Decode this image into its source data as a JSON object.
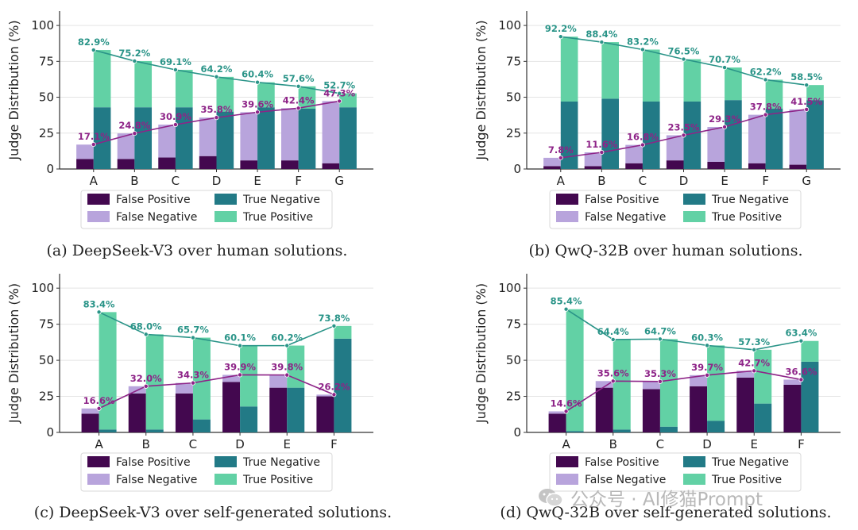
{
  "colors": {
    "false_positive": "#43084f",
    "false_negative": "#b8a4dc",
    "true_negative": "#227a86",
    "true_positive": "#62d1a5",
    "tp_line": "#2a9488",
    "fn_line": "#8e2488",
    "tp_label": "#2a9488",
    "fn_label": "#8e2488"
  },
  "legend": {
    "false_positive": "False Positive",
    "true_negative": "True Negative",
    "false_negative": "False Negative",
    "true_positive": "True Positive"
  },
  "watermark": {
    "text": "公众号 · AI修猫Prompt",
    "icon": "wechat-icon"
  },
  "chart_data": [
    {
      "type": "bar",
      "caption": "(a) DeepSeek-V3 over human solutions.",
      "ylabel": "Judge Distribution (%)",
      "ylim": [
        0,
        110
      ],
      "yticks": [
        0,
        25,
        50,
        75,
        100
      ],
      "categories": [
        "A",
        "B",
        "C",
        "D",
        "E",
        "F",
        "G"
      ],
      "series": [
        {
          "name": "False Positive",
          "values": [
            7,
            7,
            8,
            9,
            6,
            6,
            4
          ]
        },
        {
          "name": "False Negative",
          "values": [
            10,
            17.8,
            22.9,
            26.8,
            33.6,
            36.4,
            43.3
          ]
        },
        {
          "name": "True Negative",
          "values": [
            43,
            43,
            43,
            40,
            43,
            42,
            43
          ]
        },
        {
          "name": "True Positive",
          "values": [
            39.9,
            32.2,
            26.1,
            24.2,
            17.4,
            15.6,
            9.7
          ]
        }
      ],
      "line_true_positive": [
        82.9,
        75.2,
        69.1,
        64.2,
        60.4,
        57.6,
        52.7
      ],
      "line_false_negative": [
        17.1,
        24.8,
        30.9,
        35.8,
        39.6,
        42.4,
        47.3
      ],
      "labels_true_positive": [
        "82.9%",
        "75.2%",
        "69.1%",
        "64.2%",
        "60.4%",
        "57.6%",
        "52.7%"
      ],
      "labels_false_negative": [
        "17.1%",
        "24.8%",
        "30.9%",
        "35.8%",
        "39.6%",
        "42.4%",
        "47.3%"
      ]
    },
    {
      "type": "bar",
      "caption": "(b) QwQ-32B over human solutions.",
      "ylabel": "Judge Distribution (%)",
      "ylim": [
        0,
        110
      ],
      "yticks": [
        0,
        25,
        50,
        75,
        100
      ],
      "categories": [
        "A",
        "B",
        "C",
        "D",
        "E",
        "F",
        "G"
      ],
      "series": [
        {
          "name": "False Positive",
          "values": [
            2,
            2,
            4,
            6,
            5,
            4,
            3
          ]
        },
        {
          "name": "False Negative",
          "values": [
            5.8,
            9.6,
            12.8,
            17.5,
            24.3,
            33.8,
            38.5
          ]
        },
        {
          "name": "True Negative",
          "values": [
            47,
            49,
            47,
            47,
            48,
            42,
            48
          ]
        },
        {
          "name": "True Positive",
          "values": [
            45.2,
            39.4,
            36.2,
            29.5,
            22.7,
            20.2,
            10.5
          ]
        }
      ],
      "line_true_positive": [
        92.2,
        88.4,
        83.2,
        76.5,
        70.7,
        62.2,
        58.5
      ],
      "line_false_negative": [
        7.8,
        11.6,
        16.8,
        23.5,
        29.3,
        37.8,
        41.5
      ],
      "labels_true_positive": [
        "92.2%",
        "88.4%",
        "83.2%",
        "76.5%",
        "70.7%",
        "62.2%",
        "58.5%"
      ],
      "labels_false_negative": [
        "7.8%",
        "11.6%",
        "16.8%",
        "23.5%",
        "29.3%",
        "37.8%",
        "41.5%"
      ]
    },
    {
      "type": "bar",
      "caption": "(c) DeepSeek-V3 over self-generated solutions.",
      "ylabel": "Judge Distribution (%)",
      "ylim": [
        0,
        110
      ],
      "yticks": [
        0,
        25,
        50,
        75,
        100
      ],
      "categories": [
        "A",
        "B",
        "C",
        "D",
        "E",
        "F"
      ],
      "series": [
        {
          "name": "False Positive",
          "values": [
            13,
            27,
            27,
            35,
            31,
            25
          ]
        },
        {
          "name": "False Negative",
          "values": [
            3.6,
            5,
            7.3,
            4.9,
            8.8,
            1.2
          ]
        },
        {
          "name": "True Negative",
          "values": [
            2,
            2,
            9,
            18,
            31,
            65
          ]
        },
        {
          "name": "True Positive",
          "values": [
            81.4,
            66,
            56.7,
            42.1,
            29.2,
            8.8
          ]
        }
      ],
      "line_true_positive": [
        83.4,
        68.0,
        65.7,
        60.1,
        60.2,
        73.8
      ],
      "line_false_negative": [
        16.6,
        32.0,
        34.3,
        39.9,
        39.8,
        26.2
      ],
      "labels_true_positive": [
        "83.4%",
        "68.0%",
        "65.7%",
        "60.1%",
        "60.2%",
        "73.8%"
      ],
      "labels_false_negative": [
        "16.6%",
        "32.0%",
        "34.3%",
        "39.9%",
        "39.8%",
        "26.2%"
      ]
    },
    {
      "type": "bar",
      "caption": "(d) QwQ-32B over self-generated solutions.",
      "ylabel": "Judge Distribution (%)",
      "ylim": [
        0,
        110
      ],
      "yticks": [
        0,
        25,
        50,
        75,
        100
      ],
      "categories": [
        "A",
        "B",
        "C",
        "D",
        "E",
        "F"
      ],
      "series": [
        {
          "name": "False Positive",
          "values": [
            13,
            31,
            30,
            32,
            38,
            33
          ]
        },
        {
          "name": "False Negative",
          "values": [
            1.6,
            4.6,
            5.3,
            7.7,
            4.7,
            3.6
          ]
        },
        {
          "name": "True Negative",
          "values": [
            1,
            2,
            4,
            8,
            20,
            49
          ]
        },
        {
          "name": "True Positive",
          "values": [
            84.4,
            62.4,
            60.7,
            52.3,
            37.3,
            14.4
          ]
        }
      ],
      "line_true_positive": [
        85.4,
        64.4,
        64.7,
        60.3,
        57.3,
        63.4
      ],
      "line_false_negative": [
        14.6,
        35.6,
        35.3,
        39.7,
        42.7,
        36.6
      ],
      "labels_true_positive": [
        "85.4%",
        "64.4%",
        "64.7%",
        "60.3%",
        "57.3%",
        "63.4%"
      ],
      "labels_false_negative": [
        "14.6%",
        "35.6%",
        "35.3%",
        "39.7%",
        "42.7%",
        "36.6%"
      ]
    }
  ]
}
